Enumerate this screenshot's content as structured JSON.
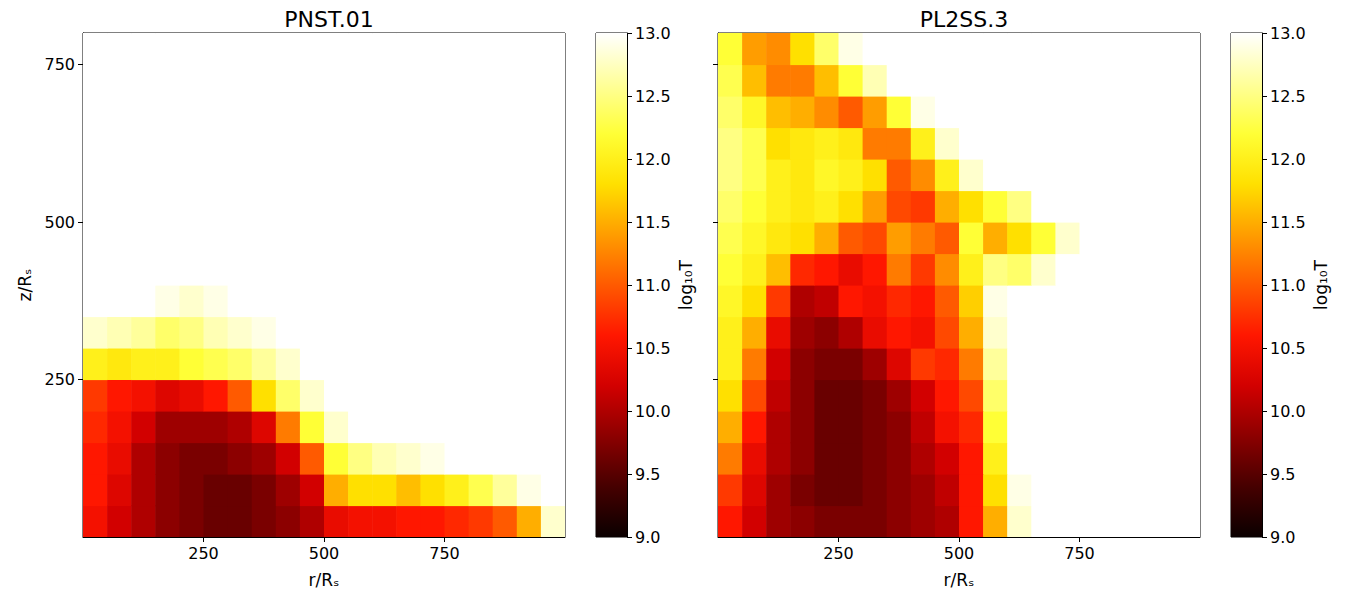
{
  "chart_data": [
    {
      "type": "heatmap",
      "title": "PNST.01",
      "xlabel": "r/Rₛ",
      "ylabel": "z/Rₛ",
      "xlim": [
        0,
        1000
      ],
      "ylim": [
        0,
        800
      ],
      "xticks": [
        250,
        500,
        750
      ],
      "yticks": [
        250,
        500,
        750
      ],
      "x_edges": [
        0,
        50,
        100,
        150,
        200,
        250,
        300,
        350,
        400,
        450,
        500,
        550,
        600,
        650,
        700,
        750,
        800,
        850,
        900,
        950,
        1000
      ],
      "y_edges": [
        0,
        50,
        100,
        150,
        200,
        250,
        300,
        350,
        400,
        450,
        500,
        550,
        600,
        650,
        700,
        750,
        800
      ],
      "values": [
        [
          10.5,
          10.2,
          10.0,
          9.8,
          9.7,
          9.6,
          9.6,
          9.7,
          9.8,
          10.0,
          10.4,
          10.5,
          10.5,
          10.6,
          10.6,
          10.7,
          10.8,
          11.0,
          11.5,
          12.8
        ],
        [
          10.6,
          10.3,
          10.0,
          9.8,
          9.7,
          9.6,
          9.6,
          9.7,
          9.9,
          10.2,
          11.5,
          11.8,
          11.8,
          11.6,
          11.8,
          12.0,
          12.3,
          12.6,
          12.9,
          13.0
        ],
        [
          10.6,
          10.4,
          10.0,
          9.8,
          9.7,
          9.7,
          9.8,
          9.9,
          10.2,
          11.0,
          12.2,
          12.5,
          12.7,
          12.8,
          12.9,
          13.0,
          13.0,
          13.0,
          13.0,
          13.0
        ],
        [
          10.7,
          10.5,
          10.2,
          9.9,
          9.9,
          9.9,
          10.0,
          10.3,
          11.2,
          12.2,
          12.8,
          13.0,
          13.0,
          13.0,
          13.0,
          13.0,
          13.0,
          13.0,
          13.0,
          13.0
        ],
        [
          10.8,
          10.6,
          10.5,
          10.3,
          10.4,
          10.6,
          11.0,
          11.8,
          12.4,
          12.8,
          13.0,
          13.0,
          13.0,
          13.0,
          13.0,
          13.0,
          13.0,
          13.0,
          13.0,
          13.0
        ],
        [
          12.0,
          11.9,
          12.0,
          12.0,
          12.2,
          12.3,
          12.4,
          12.6,
          12.8,
          13.0,
          13.0,
          13.0,
          13.0,
          13.0,
          13.0,
          13.0,
          13.0,
          13.0,
          13.0,
          13.0
        ],
        [
          12.8,
          12.7,
          12.6,
          12.4,
          12.5,
          12.7,
          12.8,
          12.9,
          13.0,
          13.0,
          13.0,
          13.0,
          13.0,
          13.0,
          13.0,
          13.0,
          13.0,
          13.0,
          13.0,
          13.0
        ],
        [
          13.0,
          13.0,
          13.0,
          12.9,
          12.8,
          12.9,
          13.0,
          13.0,
          13.0,
          13.0,
          13.0,
          13.0,
          13.0,
          13.0,
          13.0,
          13.0,
          13.0,
          13.0,
          13.0,
          13.0
        ],
        [
          13.0,
          13.0,
          13.0,
          13.0,
          13.0,
          13.0,
          13.0,
          13.0,
          13.0,
          13.0,
          13.0,
          13.0,
          13.0,
          13.0,
          13.0,
          13.0,
          13.0,
          13.0,
          13.0,
          13.0
        ],
        [
          13.0,
          13.0,
          13.0,
          13.0,
          13.0,
          13.0,
          13.0,
          13.0,
          13.0,
          13.0,
          13.0,
          13.0,
          13.0,
          13.0,
          13.0,
          13.0,
          13.0,
          13.0,
          13.0,
          13.0
        ],
        [
          13.0,
          13.0,
          13.0,
          13.0,
          13.0,
          13.0,
          13.0,
          13.0,
          13.0,
          13.0,
          13.0,
          13.0,
          13.0,
          13.0,
          13.0,
          13.0,
          13.0,
          13.0,
          13.0,
          13.0
        ],
        [
          13.0,
          13.0,
          13.0,
          13.0,
          13.0,
          13.0,
          13.0,
          13.0,
          13.0,
          13.0,
          13.0,
          13.0,
          13.0,
          13.0,
          13.0,
          13.0,
          13.0,
          13.0,
          13.0,
          13.0
        ],
        [
          13.0,
          13.0,
          13.0,
          13.0,
          13.0,
          13.0,
          13.0,
          13.0,
          13.0,
          13.0,
          13.0,
          13.0,
          13.0,
          13.0,
          13.0,
          13.0,
          13.0,
          13.0,
          13.0,
          13.0
        ],
        [
          13.0,
          13.0,
          13.0,
          13.0,
          13.0,
          13.0,
          13.0,
          13.0,
          13.0,
          13.0,
          13.0,
          13.0,
          13.0,
          13.0,
          13.0,
          13.0,
          13.0,
          13.0,
          13.0,
          13.0
        ],
        [
          13.0,
          13.0,
          13.0,
          13.0,
          13.0,
          13.0,
          13.0,
          13.0,
          13.0,
          13.0,
          13.0,
          13.0,
          13.0,
          13.0,
          13.0,
          13.0,
          13.0,
          13.0,
          13.0,
          13.0
        ],
        [
          13.0,
          13.0,
          13.0,
          13.0,
          13.0,
          13.0,
          13.0,
          13.0,
          13.0,
          13.0,
          13.0,
          13.0,
          13.0,
          13.0,
          13.0,
          13.0,
          13.0,
          13.0,
          13.0,
          13.0
        ]
      ],
      "colorbar": {
        "label": "log₁₀T",
        "range": [
          9.0,
          13.0
        ],
        "ticks": [
          {
            "value": 9.0,
            "label": "9.0"
          },
          {
            "value": 9.5,
            "label": "9.5"
          },
          {
            "value": 10.0,
            "label": "10.0"
          },
          {
            "value": 10.5,
            "label": "10.5"
          },
          {
            "value": 11.0,
            "label": "11.0"
          },
          {
            "value": 11.5,
            "label": "11.5"
          },
          {
            "value": 12.0,
            "label": "12.0"
          },
          {
            "value": 12.5,
            "label": "12.5"
          },
          {
            "value": 13.0,
            "label": "13.0"
          }
        ]
      }
    },
    {
      "type": "heatmap",
      "title": "PL2SS.3",
      "xlabel": "r/Rₛ",
      "xlim": [
        0,
        1000
      ],
      "ylim": [
        0,
        800
      ],
      "xticks": [
        250,
        500,
        750
      ],
      "yticks": [
        250,
        500,
        750
      ],
      "tick_labels": "x",
      "x_edges": [
        0,
        50,
        100,
        150,
        200,
        250,
        300,
        350,
        400,
        450,
        500,
        550,
        600,
        650,
        700,
        750,
        800,
        850,
        900,
        950,
        1000
      ],
      "y_edges": [
        0,
        50,
        100,
        150,
        200,
        250,
        300,
        350,
        400,
        450,
        500,
        550,
        600,
        650,
        700,
        750,
        800
      ],
      "values": [
        [
          10.6,
          10.2,
          9.9,
          9.8,
          9.7,
          9.7,
          9.7,
          9.8,
          9.9,
          10.0,
          10.6,
          11.5,
          12.8,
          13.0,
          13.0,
          13.0,
          13.0,
          13.0,
          13.0,
          13.0
        ],
        [
          10.8,
          10.3,
          9.9,
          9.7,
          9.6,
          9.6,
          9.7,
          9.8,
          9.9,
          10.1,
          10.6,
          11.8,
          12.9,
          13.0,
          13.0,
          13.0,
          13.0,
          13.0,
          13.0,
          13.0
        ],
        [
          11.2,
          10.4,
          10.0,
          9.8,
          9.6,
          9.6,
          9.7,
          9.8,
          10.0,
          10.2,
          10.6,
          12.0,
          13.0,
          13.0,
          13.0,
          13.0,
          13.0,
          13.0,
          13.0,
          13.0
        ],
        [
          11.5,
          10.6,
          10.0,
          9.8,
          9.6,
          9.6,
          9.7,
          9.8,
          10.1,
          10.5,
          10.7,
          12.2,
          13.0,
          13.0,
          13.0,
          13.0,
          13.0,
          13.0,
          13.0,
          13.0
        ],
        [
          11.8,
          10.9,
          10.1,
          9.8,
          9.6,
          9.6,
          9.7,
          9.9,
          10.2,
          10.6,
          10.9,
          12.4,
          13.0,
          13.0,
          13.0,
          13.0,
          13.0,
          13.0,
          13.0,
          13.0
        ],
        [
          12.0,
          11.2,
          10.2,
          9.8,
          9.7,
          9.7,
          9.9,
          10.3,
          10.8,
          10.7,
          11.2,
          12.6,
          13.0,
          13.0,
          13.0,
          13.0,
          13.0,
          13.0,
          13.0,
          13.0
        ],
        [
          12.0,
          11.5,
          10.4,
          9.9,
          9.8,
          10.0,
          10.4,
          10.6,
          10.5,
          10.9,
          11.5,
          12.8,
          13.0,
          13.0,
          13.0,
          13.0,
          13.0,
          13.0,
          13.0,
          13.0
        ],
        [
          12.1,
          11.8,
          10.8,
          10.0,
          10.1,
          10.6,
          10.5,
          10.7,
          10.6,
          11.0,
          11.7,
          12.9,
          13.0,
          13.0,
          13.0,
          13.0,
          13.0,
          13.0,
          13.0,
          13.0
        ],
        [
          12.2,
          12.0,
          11.6,
          10.7,
          10.6,
          10.4,
          10.6,
          11.2,
          10.8,
          11.3,
          12.0,
          12.5,
          12.4,
          12.8,
          13.0,
          13.0,
          13.0,
          13.0,
          13.0,
          13.0
        ],
        [
          12.3,
          12.1,
          11.9,
          11.8,
          11.5,
          11.0,
          10.9,
          11.4,
          11.2,
          11.0,
          12.2,
          11.5,
          11.8,
          12.2,
          12.8,
          13.0,
          13.0,
          13.0,
          13.0,
          13.0
        ],
        [
          12.4,
          12.2,
          12.0,
          11.9,
          12.0,
          11.8,
          11.4,
          10.9,
          10.8,
          11.5,
          11.8,
          12.2,
          12.5,
          13.0,
          13.0,
          13.0,
          13.0,
          13.0,
          13.0,
          13.0
        ],
        [
          12.5,
          12.3,
          12.0,
          11.9,
          12.1,
          12.0,
          11.8,
          11.0,
          11.3,
          12.0,
          12.8,
          13.0,
          13.0,
          13.0,
          13.0,
          13.0,
          13.0,
          13.0,
          13.0,
          13.0
        ],
        [
          12.5,
          12.3,
          11.8,
          11.9,
          12.0,
          11.9,
          11.2,
          11.2,
          12.0,
          12.8,
          13.0,
          13.0,
          13.0,
          13.0,
          13.0,
          13.0,
          13.0,
          13.0,
          13.0,
          13.0
        ],
        [
          12.4,
          12.1,
          11.6,
          11.5,
          11.3,
          11.0,
          11.4,
          12.2,
          12.9,
          13.0,
          13.0,
          13.0,
          13.0,
          13.0,
          13.0,
          13.0,
          13.0,
          13.0,
          13.0,
          13.0
        ],
        [
          12.3,
          11.6,
          11.2,
          11.2,
          11.6,
          12.2,
          12.7,
          13.0,
          13.0,
          13.0,
          13.0,
          13.0,
          13.0,
          13.0,
          13.0,
          13.0,
          13.0,
          13.0,
          13.0,
          13.0
        ],
        [
          12.2,
          11.4,
          11.3,
          11.8,
          12.4,
          12.9,
          13.0,
          13.0,
          13.0,
          13.0,
          13.0,
          13.0,
          13.0,
          13.0,
          13.0,
          13.0,
          13.0,
          13.0,
          13.0,
          13.0
        ]
      ],
      "colorbar": {
        "label": "log₁₀T",
        "range": [
          9.0,
          13.0
        ],
        "ticks": [
          {
            "value": 9.0,
            "label": "9.0"
          },
          {
            "value": 9.5,
            "label": "9.5"
          },
          {
            "value": 10.0,
            "label": "10.0"
          },
          {
            "value": 10.5,
            "label": "10.5"
          },
          {
            "value": 11.0,
            "label": "11.0"
          },
          {
            "value": 11.5,
            "label": "11.5"
          },
          {
            "value": 12.0,
            "label": "12.0"
          },
          {
            "value": 12.5,
            "label": "12.5"
          },
          {
            "value": 13.0,
            "label": "13.0"
          }
        ]
      }
    }
  ]
}
